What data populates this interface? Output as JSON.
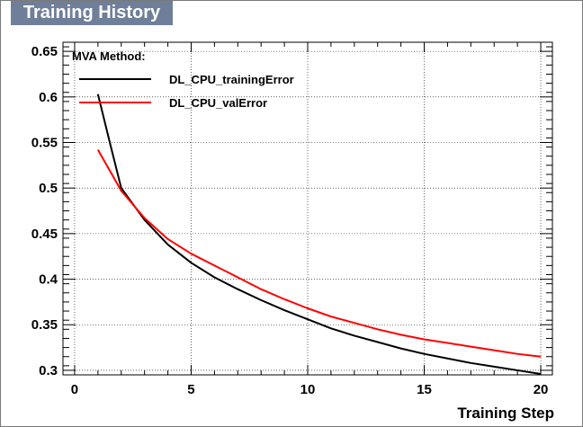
{
  "window": {
    "title": "Training History"
  },
  "chart_data": {
    "type": "line",
    "title": "",
    "xlabel": "Training Step",
    "ylabel": "",
    "xlim": [
      -0.5,
      20.5
    ],
    "ylim": [
      0.295,
      0.66
    ],
    "x_ticks": [
      0,
      5,
      10,
      15,
      20
    ],
    "x_tick_labels": [
      "0",
      "5",
      "10",
      "15",
      "20"
    ],
    "y_ticks": [
      0.3,
      0.35,
      0.4,
      0.45,
      0.5,
      0.55,
      0.6,
      0.65
    ],
    "y_tick_labels": [
      "0.3",
      "0.35",
      "0.4",
      "0.45",
      "0.5",
      "0.55",
      "0.6",
      "0.65"
    ],
    "grid": true,
    "legend": {
      "header": "MVA Method:",
      "position": "top-left"
    },
    "series": [
      {
        "name": "DL_CPU_trainingError",
        "color": "#000000",
        "x": [
          1,
          1.5,
          2,
          3,
          4,
          5,
          6,
          7,
          8,
          9,
          10,
          11,
          12,
          13,
          14,
          15,
          16,
          17,
          18,
          19,
          20
        ],
        "values": [
          0.603,
          0.551,
          0.5,
          0.465,
          0.438,
          0.418,
          0.402,
          0.389,
          0.377,
          0.366,
          0.356,
          0.346,
          0.338,
          0.331,
          0.324,
          0.318,
          0.313,
          0.308,
          0.304,
          0.3,
          0.296
        ]
      },
      {
        "name": "DL_CPU_valError",
        "color": "#ff0000",
        "x": [
          1,
          2,
          3,
          4,
          5,
          6,
          7,
          8,
          9,
          10,
          11,
          12,
          13,
          14,
          15,
          16,
          17,
          18,
          19,
          20
        ],
        "values": [
          0.542,
          0.497,
          0.467,
          0.444,
          0.428,
          0.415,
          0.402,
          0.389,
          0.378,
          0.368,
          0.359,
          0.352,
          0.345,
          0.339,
          0.334,
          0.33,
          0.326,
          0.322,
          0.318,
          0.315
        ]
      }
    ]
  }
}
